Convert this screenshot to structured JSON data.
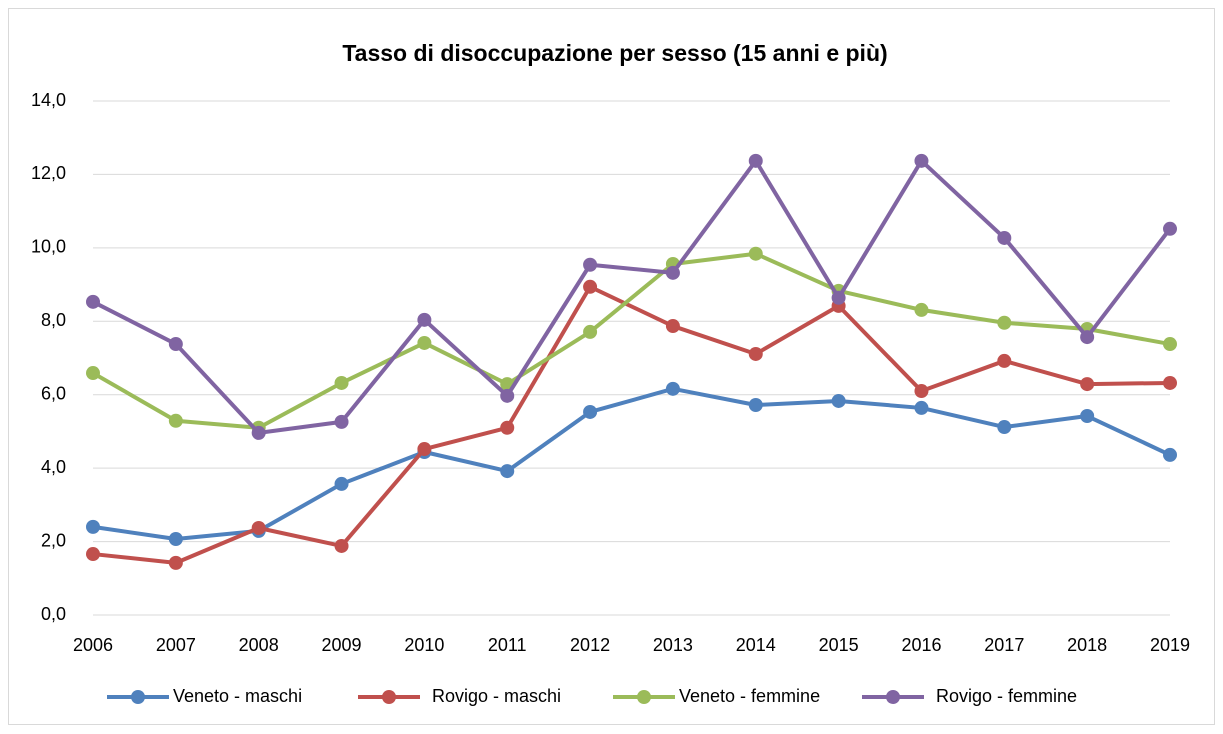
{
  "chart_data": {
    "type": "line",
    "title": "Tasso di disoccupazione per sesso (15 anni e più)",
    "categories": [
      "2006",
      "2007",
      "2008",
      "2009",
      "2010",
      "2011",
      "2012",
      "2013",
      "2014",
      "2015",
      "2016",
      "2017",
      "2018",
      "2019"
    ],
    "series": [
      {
        "name": "Veneto - maschi",
        "color": "#4F81BD",
        "values": [
          2.4,
          2.07,
          2.29,
          3.57,
          4.44,
          3.92,
          5.53,
          6.16,
          5.72,
          5.83,
          5.64,
          5.12,
          5.42,
          4.36
        ]
      },
      {
        "name": "Rovigo - maschi",
        "color": "#C0504D",
        "values": [
          1.66,
          1.42,
          2.37,
          1.88,
          4.52,
          5.1,
          8.94,
          7.87,
          7.11,
          8.42,
          6.1,
          6.92,
          6.29,
          6.32
        ]
      },
      {
        "name": "Veneto - femmine",
        "color": "#9BBB59",
        "values": [
          6.59,
          5.29,
          5.1,
          6.32,
          7.41,
          6.29,
          7.71,
          9.56,
          9.84,
          8.83,
          8.31,
          7.96,
          7.79,
          7.38
        ]
      },
      {
        "name": "Rovigo - femmine",
        "color": "#8064A2",
        "values": [
          8.53,
          7.38,
          4.96,
          5.26,
          8.04,
          5.97,
          9.54,
          9.32,
          12.37,
          8.64,
          12.37,
          10.27,
          7.57,
          10.52
        ]
      }
    ],
    "ylim": [
      0,
      14
    ],
    "yticks": [
      {
        "value": 0,
        "label": "0,0"
      },
      {
        "value": 2,
        "label": "2,0"
      },
      {
        "value": 4,
        "label": "4,0"
      },
      {
        "value": 6,
        "label": "6,0"
      },
      {
        "value": 8,
        "label": "8,0"
      },
      {
        "value": 10,
        "label": "10,0"
      },
      {
        "value": 12,
        "label": "12,0"
      },
      {
        "value": 14,
        "label": "14,0"
      }
    ],
    "grid": true,
    "legend": "bottom"
  }
}
